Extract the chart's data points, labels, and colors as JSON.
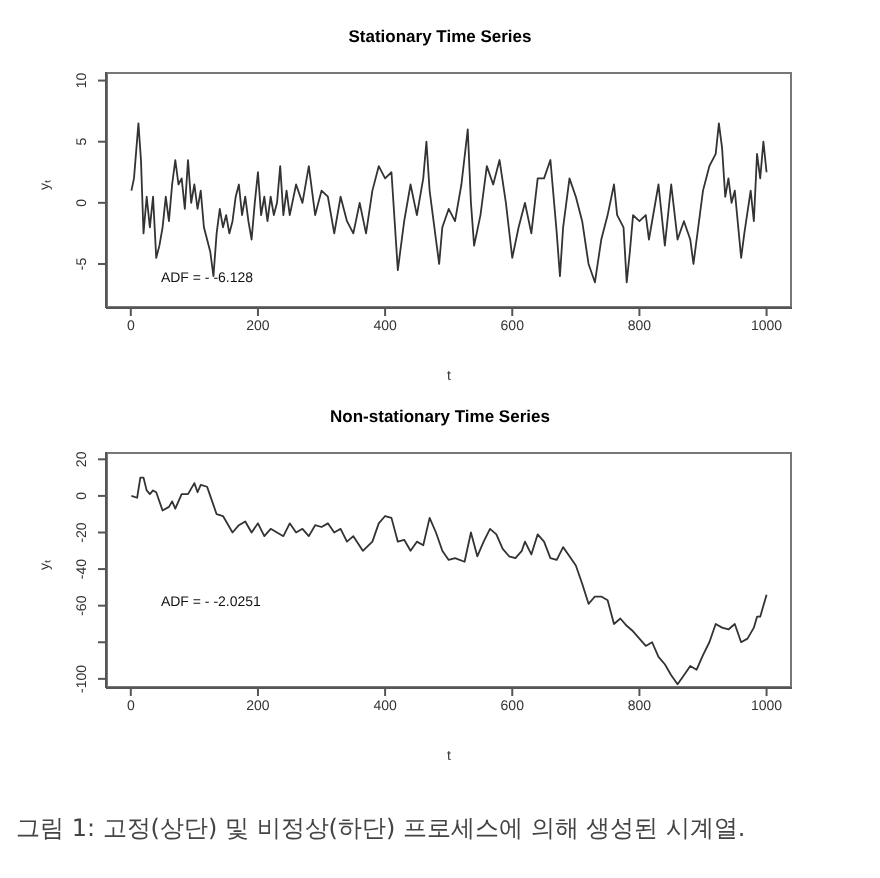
{
  "chart_data": [
    {
      "type": "line",
      "title": "Stationary Time Series",
      "xlabel": "t",
      "ylabel": "yₜ",
      "annotations": [
        "ADF = - -6.128"
      ],
      "xlim": [
        -39,
        1040
      ],
      "xticks": [
        0,
        200,
        400,
        600,
        800,
        1000
      ],
      "ylim": [
        -8.6,
        10.7
      ],
      "yticks": [
        -5,
        0,
        5,
        10
      ],
      "series": [
        {
          "color": "#333333",
          "x": [
            1,
            5,
            12,
            16,
            20,
            25,
            30,
            35,
            40,
            45,
            50,
            55,
            60,
            65,
            70,
            75,
            80,
            85,
            90,
            95,
            100,
            105,
            110,
            115,
            120,
            125,
            130,
            135,
            140,
            145,
            150,
            155,
            160,
            165,
            170,
            175,
            180,
            185,
            190,
            195,
            200,
            205,
            210,
            215,
            220,
            225,
            230,
            235,
            240,
            245,
            250,
            260,
            270,
            280,
            290,
            300,
            310,
            320,
            330,
            340,
            350,
            360,
            370,
            380,
            390,
            400,
            410,
            420,
            430,
            440,
            450,
            460,
            465,
            470,
            480,
            485,
            490,
            500,
            510,
            520,
            530,
            535,
            540,
            550,
            560,
            570,
            580,
            590,
            600,
            610,
            620,
            630,
            640,
            650,
            660,
            670,
            675,
            680,
            690,
            700,
            710,
            720,
            730,
            740,
            750,
            760,
            765,
            775,
            780,
            785,
            790,
            800,
            810,
            815,
            830,
            840,
            850,
            860,
            870,
            880,
            885,
            895,
            900,
            910,
            920,
            925,
            930,
            935,
            940,
            945,
            950,
            960,
            965,
            975,
            980,
            985,
            990,
            995,
            1000
          ],
          "values": [
            1,
            2,
            6.5,
            3.5,
            -2.5,
            0.5,
            -2,
            0.5,
            -4.5,
            -3.5,
            -2,
            0.5,
            -1.5,
            1.5,
            3.5,
            1.5,
            2,
            -0.5,
            3.5,
            0,
            1.5,
            -0.5,
            1,
            -2,
            -3,
            -4,
            -6,
            -2.5,
            -0.5,
            -2,
            -1,
            -2.5,
            -1.5,
            0.5,
            1.5,
            -1,
            0.5,
            -1.5,
            -3,
            0,
            2.5,
            -1,
            0.5,
            -1.5,
            0.5,
            -1,
            0,
            3,
            -1,
            1,
            -1,
            1.5,
            0,
            3,
            -1,
            1,
            0.5,
            -2.5,
            0.5,
            -1.5,
            -2.5,
            0,
            -2.5,
            1,
            3,
            2,
            2.5,
            -5.5,
            -1.5,
            1.5,
            -1,
            2,
            5,
            1,
            -3,
            -5,
            -2,
            -0.5,
            -1.5,
            1.5,
            6,
            0,
            -3.5,
            -1,
            3,
            1.5,
            3.5,
            0,
            -4.5,
            -2,
            0,
            -2.5,
            2,
            2,
            3.5,
            -2.5,
            -6,
            -2,
            2,
            0.5,
            -1.5,
            -5,
            -6.5,
            -3,
            -1,
            1.5,
            -1,
            -2,
            -6.5,
            -4,
            -1,
            -1.5,
            -1,
            -3,
            1.5,
            -3.5,
            1.5,
            -3,
            -1.5,
            -3,
            -5,
            -1,
            1,
            3,
            4,
            6.5,
            4.5,
            0.5,
            2,
            0,
            1,
            -4.5,
            -2.5,
            1,
            -1.5,
            4,
            2,
            5,
            2.5
          ]
        }
      ]
    },
    {
      "type": "line",
      "title": "Non-stationary Time Series",
      "xlabel": "t",
      "ylabel": "yₜ",
      "annotations": [
        "ADF = - -2.0251",
        "그림 1: 고정(상단) 및 비정상(하단) 프로세스에 의해 생성된 시계열."
      ],
      "xlim": [
        -39,
        1040
      ],
      "xticks": [
        0,
        200,
        400,
        600,
        800,
        1000
      ],
      "ylim": [
        -105,
        24
      ],
      "yticks": [
        -100,
        {
          "value": -80,
          "label": null
        },
        -60,
        -40,
        -20,
        0,
        20
      ],
      "series": [
        {
          "color": "#333333",
          "x": [
            1,
            10,
            15,
            20,
            25,
            30,
            35,
            40,
            50,
            60,
            65,
            70,
            80,
            90,
            100,
            105,
            110,
            120,
            125,
            135,
            145,
            160,
            170,
            180,
            190,
            200,
            210,
            220,
            240,
            250,
            260,
            270,
            280,
            290,
            300,
            310,
            320,
            330,
            340,
            350,
            365,
            380,
            390,
            400,
            410,
            420,
            430,
            440,
            450,
            460,
            470,
            480,
            490,
            500,
            510,
            525,
            535,
            545,
            555,
            565,
            575,
            585,
            595,
            605,
            615,
            620,
            630,
            640,
            650,
            660,
            670,
            680,
            690,
            700,
            710,
            720,
            730,
            740,
            750,
            760,
            770,
            780,
            790,
            800,
            810,
            820,
            830,
            840,
            850,
            860,
            870,
            880,
            890,
            900,
            910,
            920,
            930,
            940,
            950,
            960,
            970,
            980,
            985,
            990,
            1000
          ],
          "values": [
            0,
            -1,
            10,
            10,
            3,
            1,
            3,
            2,
            -8,
            -6,
            -3,
            -7,
            1,
            1,
            7,
            2,
            6,
            5,
            0,
            -10,
            -11,
            -20,
            -16,
            -14,
            -20,
            -15,
            -22,
            -18,
            -22,
            -15,
            -20,
            -18,
            -22,
            -16,
            -17,
            -15,
            -20,
            -18,
            -25,
            -22,
            -30,
            -25,
            -15,
            -11,
            -12,
            -25,
            -24,
            -30,
            -25,
            -27,
            -12,
            -20,
            -30,
            -35,
            -34,
            -36,
            -20,
            -33,
            -25,
            -18,
            -21,
            -29,
            -33,
            -34,
            -30,
            -25,
            -32,
            -21,
            -25,
            -34,
            -35,
            -28,
            -33,
            -38,
            -48,
            -59,
            -55,
            -55,
            -57,
            -70,
            -67,
            -71,
            -74,
            -78,
            -82,
            -80,
            -88,
            -92,
            -98,
            -103,
            -98,
            -93,
            -95,
            -87,
            -80,
            -70,
            -72,
            -73,
            -70,
            -80,
            -78,
            -72,
            -66,
            -66,
            -54
          ]
        }
      ]
    }
  ]
}
